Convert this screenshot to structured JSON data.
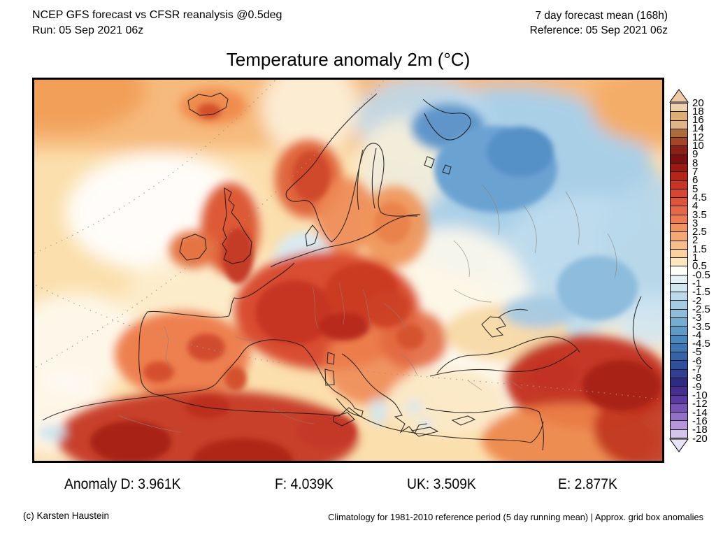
{
  "header": {
    "left_line1": "NCEP GFS forecast vs CFSR reanalysis @0.5deg",
    "left_line2": "Run: 05 Sep 2021 06z",
    "right_line1": "7 day forecast mean (168h)",
    "right_line2": "Reference: 05 Sep 2021 06z"
  },
  "title": "Temperature anomaly 2m (°C)",
  "stats": [
    "Anomaly D: 3.961K",
    "F: 4.039K",
    "UK: 3.509K",
    "E: 2.877K"
  ],
  "footer": {
    "credit": "(c) Karsten Haustein",
    "note": "Climatology for 1981-2010 reference period (5 day running mean) | Approx. grid box anomalies"
  },
  "colorbar": {
    "ticks": [
      "20",
      "18",
      "16",
      "14",
      "12",
      "10",
      "9",
      "8",
      "7",
      "6",
      "5",
      "4.5",
      "4",
      "3.5",
      "3",
      "2.5",
      "2",
      "1.5",
      "1",
      "0.5",
      "-0.5",
      "-1",
      "-1.5",
      "-2",
      "-2.5",
      "-3",
      "-3.5",
      "-4",
      "-4.5",
      "-5",
      "-6",
      "-7",
      "-8",
      "-9",
      "-10",
      "-12",
      "-14",
      "-16",
      "-18",
      "-20"
    ],
    "top_arrow": {
      "color": "#f2c9a0",
      "dots": true
    },
    "bottom_arrow": {
      "color": "#eae3f7",
      "dots": true
    },
    "bands": [
      {
        "color": "#edd2ab",
        "dots": true
      },
      {
        "color": "#ddad74",
        "dots": true
      },
      {
        "color": "#e0b483",
        "dots": true
      },
      {
        "color": "#ad6b3a",
        "dots": false
      },
      {
        "color": "#a34527",
        "dots": true
      },
      {
        "color": "#8c1f16",
        "dots": true
      },
      {
        "color": "#7c100f",
        "dots": false
      },
      {
        "color": "#9b1a13",
        "dots": false
      },
      {
        "color": "#b52619",
        "dots": false
      },
      {
        "color": "#c93425",
        "dots": false
      },
      {
        "color": "#d64733",
        "dots": false
      },
      {
        "color": "#e0553a",
        "dots": false
      },
      {
        "color": "#e76844",
        "dots": false
      },
      {
        "color": "#ee7c50",
        "dots": false
      },
      {
        "color": "#f2925f",
        "dots": false
      },
      {
        "color": "#f6a871",
        "dots": false
      },
      {
        "color": "#f9bd86",
        "dots": false
      },
      {
        "color": "#fbd29e",
        "dots": false
      },
      {
        "color": "#fde7bd",
        "dots": false
      },
      {
        "color": "#fefef8",
        "dots": false
      },
      {
        "color": "#e4f1f7",
        "dots": false
      },
      {
        "color": "#d0e6f1",
        "dots": false
      },
      {
        "color": "#bbd9ea",
        "dots": false
      },
      {
        "color": "#a4cce3",
        "dots": false
      },
      {
        "color": "#8dbddb",
        "dots": false
      },
      {
        "color": "#75add2",
        "dots": false
      },
      {
        "color": "#5d9bc9",
        "dots": false
      },
      {
        "color": "#4888bf",
        "dots": false
      },
      {
        "color": "#3d76b4",
        "dots": true
      },
      {
        "color": "#3463aa",
        "dots": false
      },
      {
        "color": "#2f4f9c",
        "dots": true
      },
      {
        "color": "#333e92",
        "dots": true
      },
      {
        "color": "#2e2b83",
        "dots": false
      },
      {
        "color": "#462d8e",
        "dots": true
      },
      {
        "color": "#5b3ba2",
        "dots": true
      },
      {
        "color": "#7653b7",
        "dots": false
      },
      {
        "color": "#9471c9",
        "dots": true
      },
      {
        "color": "#b695da",
        "dots": true
      },
      {
        "color": "#d4c3eb",
        "dots": false
      }
    ]
  }
}
